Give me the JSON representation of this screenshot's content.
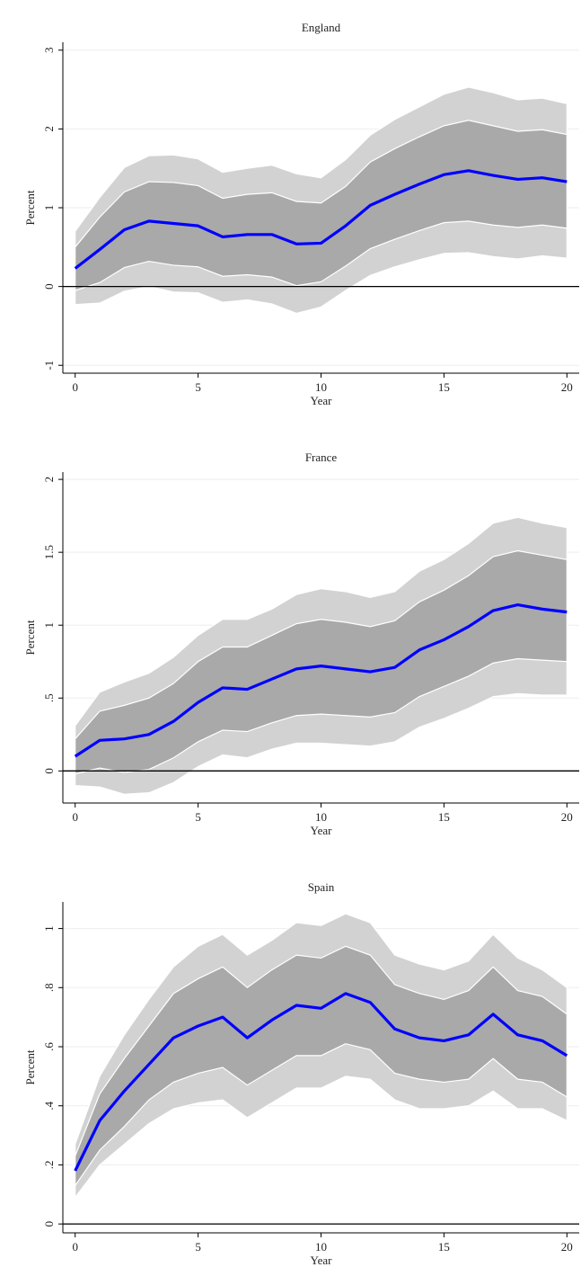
{
  "chart_data": [
    {
      "type": "line",
      "title": "England",
      "xlabel": "Year",
      "ylabel": "Percent",
      "x": [
        0,
        1,
        2,
        3,
        4,
        5,
        6,
        7,
        8,
        9,
        10,
        11,
        12,
        13,
        14,
        15,
        16,
        17,
        18,
        19,
        20
      ],
      "xlim": [
        -0.5,
        20.5
      ],
      "xticks": [
        0,
        5,
        10,
        15,
        20
      ],
      "ylim": [
        -1.1,
        3.1
      ],
      "yticks": [
        -1,
        0,
        1,
        2,
        3
      ],
      "hline": 0,
      "hline_color": "#000000",
      "band_edge_color": "#ffffff",
      "bands": [
        {
          "color": "#d2d2d2",
          "upper": [
            0.7,
            1.13,
            1.51,
            1.66,
            1.67,
            1.62,
            1.45,
            1.5,
            1.54,
            1.43,
            1.38,
            1.61,
            1.92,
            2.12,
            2.28,
            2.44,
            2.53,
            2.46,
            2.37,
            2.39,
            2.32
          ],
          "lower": [
            -0.23,
            -0.21,
            -0.06,
            0.0,
            -0.07,
            -0.08,
            -0.2,
            -0.17,
            -0.22,
            -0.34,
            -0.26,
            -0.05,
            0.14,
            0.25,
            0.34,
            0.42,
            0.43,
            0.38,
            0.35,
            0.39,
            0.36
          ]
        },
        {
          "color": "#a9a9a9",
          "upper": [
            0.5,
            0.88,
            1.2,
            1.33,
            1.32,
            1.28,
            1.12,
            1.17,
            1.19,
            1.08,
            1.06,
            1.27,
            1.58,
            1.75,
            1.9,
            2.04,
            2.11,
            2.04,
            1.97,
            1.99,
            1.93
          ],
          "lower": [
            -0.05,
            0.05,
            0.24,
            0.32,
            0.27,
            0.25,
            0.13,
            0.15,
            0.12,
            0.01,
            0.06,
            0.26,
            0.48,
            0.6,
            0.71,
            0.81,
            0.83,
            0.78,
            0.75,
            0.78,
            0.74
          ]
        }
      ],
      "series": [
        {
          "color": "#0000ff",
          "values": [
            0.23,
            0.47,
            0.72,
            0.83,
            0.8,
            0.77,
            0.63,
            0.66,
            0.66,
            0.54,
            0.55,
            0.77,
            1.03,
            1.17,
            1.3,
            1.42,
            1.47,
            1.41,
            1.36,
            1.38,
            1.33
          ]
        }
      ]
    },
    {
      "type": "line",
      "title": "France",
      "xlabel": "Year",
      "ylabel": "Percent",
      "x": [
        0,
        1,
        2,
        3,
        4,
        5,
        6,
        7,
        8,
        9,
        10,
        11,
        12,
        13,
        14,
        15,
        16,
        17,
        18,
        19,
        20
      ],
      "xlim": [
        -0.5,
        20.5
      ],
      "xticks": [
        0,
        5,
        10,
        15,
        20
      ],
      "ylim": [
        -0.22,
        2.05
      ],
      "yticks": [
        0,
        {
          "value": 0.5,
          "label": ".5"
        },
        1,
        1.5,
        2
      ],
      "hline": 0,
      "hline_color": "#000000",
      "band_edge_color": "#ffffff",
      "bands": [
        {
          "color": "#d2d2d2",
          "upper": [
            0.31,
            0.54,
            0.61,
            0.67,
            0.78,
            0.93,
            1.04,
            1.04,
            1.11,
            1.21,
            1.25,
            1.23,
            1.19,
            1.23,
            1.37,
            1.45,
            1.56,
            1.7,
            1.74,
            1.7,
            1.67
          ],
          "lower": [
            -0.1,
            -0.11,
            -0.16,
            -0.15,
            -0.08,
            0.03,
            0.11,
            0.09,
            0.15,
            0.19,
            0.19,
            0.18,
            0.17,
            0.2,
            0.3,
            0.36,
            0.43,
            0.51,
            0.53,
            0.52,
            0.52
          ]
        },
        {
          "color": "#a9a9a9",
          "upper": [
            0.22,
            0.41,
            0.45,
            0.5,
            0.6,
            0.75,
            0.85,
            0.85,
            0.93,
            1.01,
            1.04,
            1.02,
            0.99,
            1.03,
            1.16,
            1.24,
            1.34,
            1.47,
            1.51,
            1.48,
            1.45
          ],
          "lower": [
            -0.02,
            0.02,
            -0.01,
            0.01,
            0.09,
            0.2,
            0.28,
            0.27,
            0.33,
            0.38,
            0.39,
            0.38,
            0.37,
            0.4,
            0.51,
            0.58,
            0.65,
            0.74,
            0.77,
            0.76,
            0.75
          ]
        }
      ],
      "series": [
        {
          "color": "#0000ff",
          "values": [
            0.1,
            0.21,
            0.22,
            0.25,
            0.34,
            0.47,
            0.57,
            0.56,
            0.63,
            0.7,
            0.72,
            0.7,
            0.68,
            0.71,
            0.83,
            0.9,
            0.99,
            1.1,
            1.14,
            1.11,
            1.09
          ]
        }
      ]
    },
    {
      "type": "line",
      "title": "Spain",
      "xlabel": "Year",
      "ylabel": "Percent",
      "x": [
        0,
        1,
        2,
        3,
        4,
        5,
        6,
        7,
        8,
        9,
        10,
        11,
        12,
        13,
        14,
        15,
        16,
        17,
        18,
        19,
        20
      ],
      "xlim": [
        -0.5,
        20.5
      ],
      "xticks": [
        0,
        5,
        10,
        15,
        20
      ],
      "ylim": [
        -0.03,
        1.09
      ],
      "yticks": [
        0,
        {
          "value": 0.2,
          "label": ".2"
        },
        {
          "value": 0.4,
          "label": ".4"
        },
        {
          "value": 0.6,
          "label": ".6"
        },
        {
          "value": 0.8,
          "label": ".8"
        },
        1
      ],
      "hline": 0,
      "hline_color": "#000000",
      "band_edge_color": "#ffffff",
      "bands": [
        {
          "color": "#d2d2d2",
          "upper": [
            0.27,
            0.5,
            0.64,
            0.76,
            0.87,
            0.94,
            0.98,
            0.91,
            0.96,
            1.02,
            1.01,
            1.05,
            1.02,
            0.91,
            0.88,
            0.86,
            0.89,
            0.98,
            0.9,
            0.86,
            0.8
          ],
          "lower": [
            0.09,
            0.2,
            0.27,
            0.34,
            0.39,
            0.41,
            0.42,
            0.36,
            0.41,
            0.46,
            0.46,
            0.5,
            0.49,
            0.42,
            0.39,
            0.39,
            0.4,
            0.45,
            0.39,
            0.39,
            0.35
          ]
        },
        {
          "color": "#a9a9a9",
          "upper": [
            0.23,
            0.44,
            0.56,
            0.67,
            0.78,
            0.83,
            0.87,
            0.8,
            0.86,
            0.91,
            0.9,
            0.94,
            0.91,
            0.81,
            0.78,
            0.76,
            0.79,
            0.87,
            0.79,
            0.77,
            0.71
          ],
          "lower": [
            0.13,
            0.25,
            0.33,
            0.42,
            0.48,
            0.51,
            0.53,
            0.47,
            0.52,
            0.57,
            0.57,
            0.61,
            0.59,
            0.51,
            0.49,
            0.48,
            0.49,
            0.56,
            0.49,
            0.48,
            0.43
          ]
        }
      ],
      "series": [
        {
          "color": "#0000ff",
          "values": [
            0.18,
            0.35,
            0.45,
            0.54,
            0.63,
            0.67,
            0.7,
            0.63,
            0.69,
            0.74,
            0.73,
            0.78,
            0.75,
            0.66,
            0.63,
            0.62,
            0.64,
            0.71,
            0.64,
            0.62,
            0.57
          ]
        }
      ]
    }
  ]
}
